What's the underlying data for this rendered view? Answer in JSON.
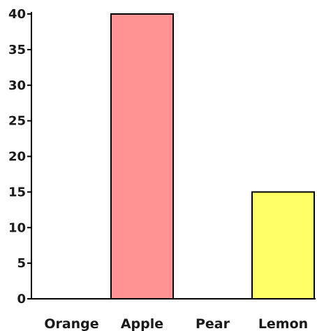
{
  "chart_data": {
    "type": "bar",
    "categories": [
      "Orange",
      "Apple",
      "Pear",
      "Lemon"
    ],
    "values": [
      0,
      40,
      0,
      15
    ],
    "colors": [
      "#ffa500",
      "#ff9393",
      "#9acd32",
      "#ffff66"
    ],
    "ylim": [
      0,
      40
    ],
    "yticks": [
      "0",
      "5",
      "10",
      "15",
      "20",
      "25",
      "30",
      "35",
      "40"
    ],
    "grid": false,
    "legend": "none",
    "title": "",
    "xlabel": "",
    "ylabel": ""
  }
}
